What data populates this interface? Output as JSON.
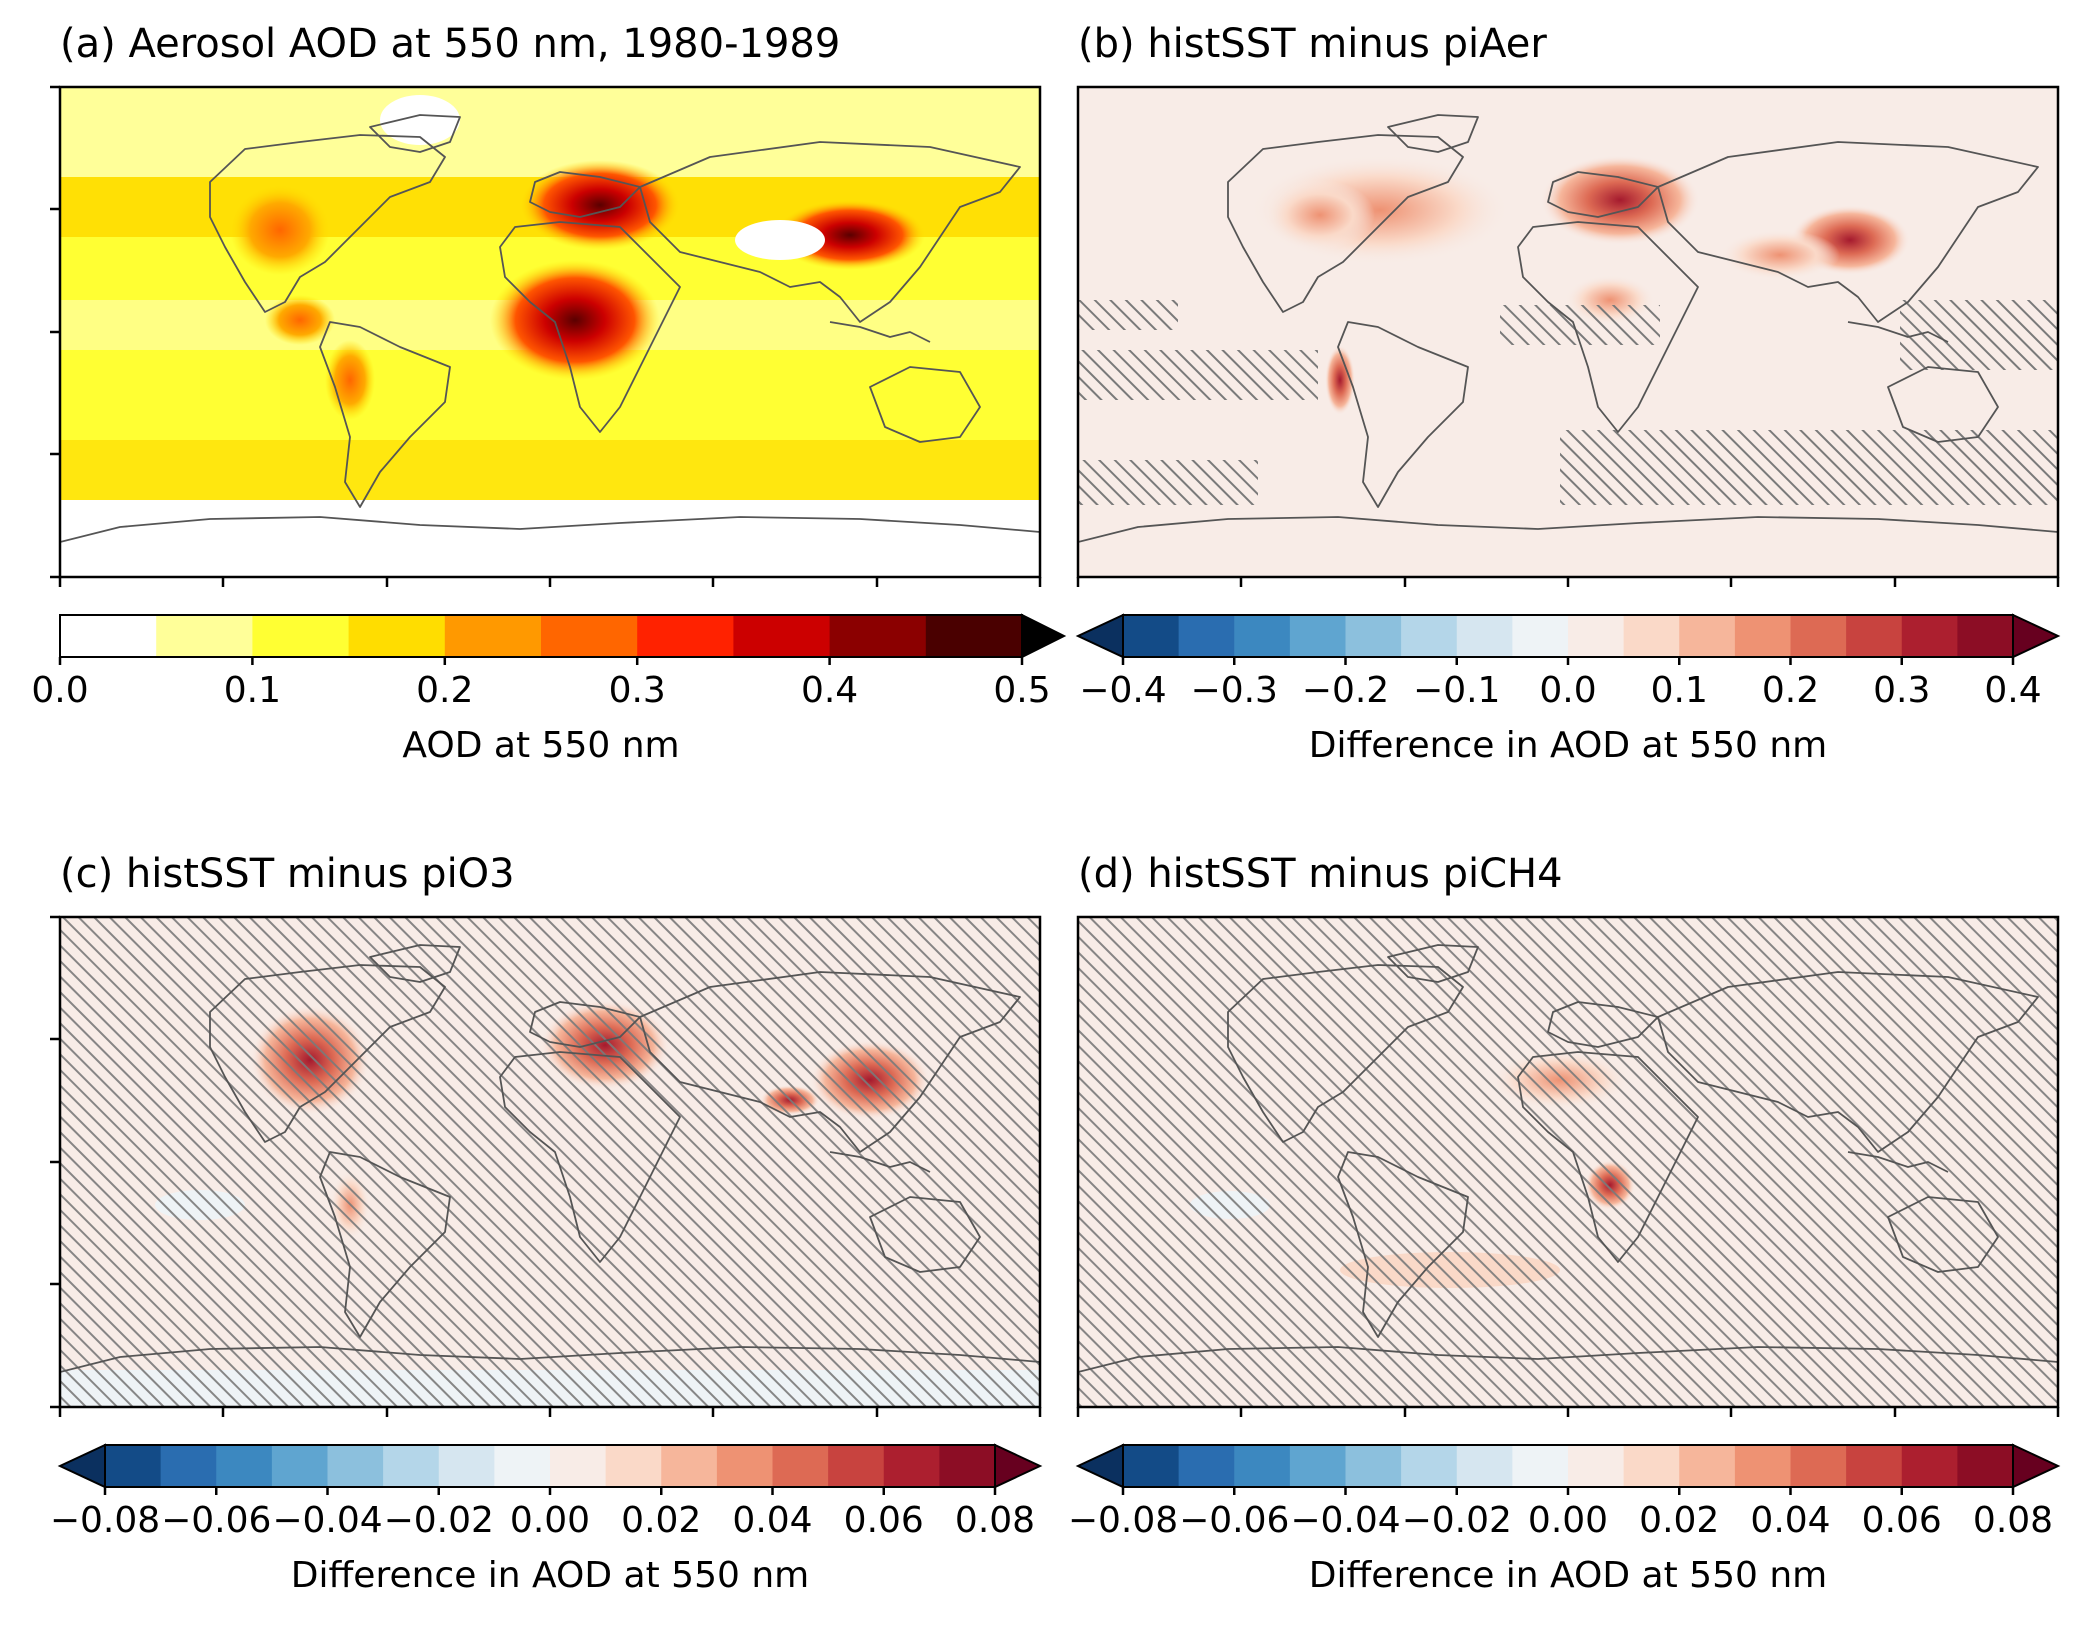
{
  "panels": [
    {
      "id": "a",
      "title": "(a) Aerosol AOD at 550 nm, 1980-1989",
      "kind": "sequential",
      "colorbar": {
        "ticks": [
          "0.0",
          "0.1",
          "0.2",
          "0.3",
          "0.4",
          "0.5"
        ],
        "label": "AOD at 550 nm",
        "levels": [
          0.0,
          0.05,
          0.1,
          0.15,
          0.2,
          0.25,
          0.3,
          0.35,
          0.4,
          0.45,
          0.5
        ],
        "extend": "max"
      }
    },
    {
      "id": "b",
      "title": "(b) histSST minus piAer",
      "kind": "diverging",
      "colorbar": {
        "ticks": [
          "−0.4",
          "−0.3",
          "−0.2",
          "−0.1",
          "0.0",
          "0.1",
          "0.2",
          "0.3",
          "0.4"
        ],
        "label": "Difference in AOD at 550 nm",
        "extend": "both"
      }
    },
    {
      "id": "c",
      "title": "(c) histSST minus piO3",
      "kind": "diverging",
      "colorbar": {
        "ticks": [
          "−0.08",
          "−0.06",
          "−0.04",
          "−0.02",
          "0.00",
          "0.02",
          "0.04",
          "0.06",
          "0.08"
        ],
        "label": "Difference in AOD at 550 nm",
        "extend": "both"
      }
    },
    {
      "id": "d",
      "title": "(d) histSST minus piCH4",
      "kind": "diverging",
      "colorbar": {
        "ticks": [
          "−0.08",
          "−0.06",
          "−0.04",
          "−0.02",
          "0.00",
          "0.02",
          "0.04",
          "0.06",
          "0.08"
        ],
        "label": "Difference in AOD at 550 nm",
        "extend": "both"
      }
    }
  ],
  "colors": {
    "sequential": [
      "#ffffff",
      "#ffff99",
      "#ffff33",
      "#ffdd00",
      "#ff9900",
      "#ff6600",
      "#ff2200",
      "#cc0000",
      "#8b0000",
      "#4a0000"
    ],
    "sequential_extend": "#000000",
    "diverging": [
      "#134b87",
      "#2a6db0",
      "#3c88c0",
      "#5fa5d0",
      "#8cc0dd",
      "#b4d6e9",
      "#d6e6f0",
      "#eef3f6",
      "#f8ece7",
      "#fad9c8",
      "#f6b69b",
      "#ee9273",
      "#dd6a54",
      "#c8433f",
      "#ac1f2f",
      "#8c0d25"
    ],
    "diverging_low": "#0b305f",
    "diverging_high": "#67001f"
  }
}
